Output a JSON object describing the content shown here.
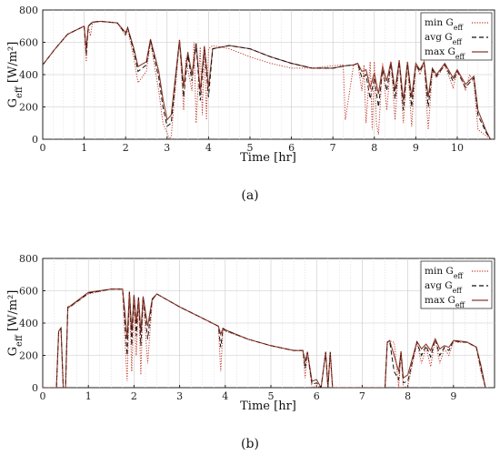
{
  "chart_data": [
    {
      "type": "line",
      "label": "(a)",
      "xlabel": "Time [hr]",
      "ylabel": "G_eff [W/m²]",
      "xlim": [
        0,
        10.9
      ],
      "ylim": [
        0,
        800
      ],
      "xticks": [
        0,
        1,
        2,
        3,
        4,
        5,
        6,
        7,
        8,
        9,
        10
      ],
      "yticks": [
        0,
        200,
        400,
        600,
        800
      ],
      "grid": true,
      "legend_position": "top-right",
      "legend": [
        "min G_eff",
        "avg G_eff",
        "max G_eff"
      ],
      "series": [
        {
          "name": "min G_eff",
          "color": "#c0392b",
          "style": "dotted",
          "x": [
            0,
            0.3,
            0.6,
            1.0,
            1.05,
            1.1,
            1.15,
            1.2,
            1.4,
            1.8,
            2.0,
            2.05,
            2.2,
            2.3,
            2.5,
            2.6,
            2.8,
            2.9,
            3.0,
            3.05,
            3.1,
            3.3,
            3.4,
            3.45,
            3.6,
            3.65,
            3.7,
            3.8,
            3.85,
            3.9,
            3.95,
            4.0,
            4.1,
            4.5,
            5.0,
            5.5,
            6.0,
            6.5,
            7.0,
            7.25,
            7.3,
            7.5,
            7.6,
            7.7,
            7.75,
            7.8,
            7.9,
            7.95,
            8.0,
            8.05,
            8.1,
            8.2,
            8.3,
            8.4,
            8.5,
            8.6,
            8.7,
            8.8,
            8.9,
            9.0,
            9.1,
            9.2,
            9.3,
            9.4,
            9.5,
            9.7,
            9.9,
            10.0,
            10.1,
            10.2,
            10.3,
            10.4,
            10.5,
            10.7,
            10.8
          ],
          "y": [
            460,
            560,
            650,
            700,
            480,
            700,
            640,
            720,
            730,
            720,
            640,
            680,
            500,
            350,
            420,
            600,
            300,
            100,
            40,
            0,
            20,
            610,
            180,
            500,
            300,
            600,
            100,
            570,
            150,
            580,
            120,
            560,
            580,
            560,
            510,
            470,
            440,
            440,
            455,
            460,
            120,
            460,
            470,
            300,
            460,
            100,
            480,
            60,
            480,
            100,
            30,
            470,
            180,
            480,
            120,
            490,
            100,
            470,
            80,
            460,
            400,
            480,
            60,
            420,
            380,
            460,
            320,
            420,
            380,
            300,
            400,
            350,
            60,
            20,
            0
          ]
        },
        {
          "name": "avg G_eff",
          "color": "#111111",
          "style": "dashed",
          "x": [
            0,
            0.3,
            0.6,
            1.0,
            1.05,
            1.1,
            1.2,
            1.4,
            1.8,
            2.0,
            2.05,
            2.2,
            2.3,
            2.5,
            2.6,
            2.8,
            2.9,
            3.0,
            3.1,
            3.3,
            3.4,
            3.5,
            3.6,
            3.7,
            3.8,
            3.9,
            4.0,
            4.1,
            4.5,
            5.0,
            5.5,
            6.0,
            6.5,
            7.0,
            7.3,
            7.5,
            7.6,
            7.7,
            7.8,
            7.9,
            8.0,
            8.1,
            8.2,
            8.3,
            8.4,
            8.5,
            8.6,
            8.7,
            8.8,
            8.9,
            9.0,
            9.1,
            9.2,
            9.3,
            9.4,
            9.5,
            9.7,
            9.9,
            10.0,
            10.2,
            10.4,
            10.5,
            10.7,
            10.8
          ],
          "y": [
            460,
            560,
            650,
            700,
            520,
            700,
            725,
            730,
            720,
            650,
            690,
            540,
            420,
            460,
            610,
            380,
            200,
            80,
            100,
            610,
            260,
            520,
            360,
            590,
            240,
            570,
            260,
            560,
            580,
            560,
            510,
            470,
            440,
            440,
            455,
            460,
            470,
            380,
            400,
            250,
            380,
            200,
            430,
            300,
            470,
            250,
            480,
            180,
            470,
            200,
            460,
            420,
            470,
            200,
            430,
            390,
            460,
            360,
            420,
            320,
            380,
            150,
            40,
            0
          ]
        },
        {
          "name": "max G_eff",
          "color": "#8b3a2a",
          "style": "solid",
          "x": [
            0,
            0.3,
            0.6,
            1.0,
            1.05,
            1.1,
            1.2,
            1.4,
            1.8,
            2.0,
            2.05,
            2.2,
            2.3,
            2.5,
            2.6,
            2.8,
            2.9,
            3.0,
            3.1,
            3.3,
            3.4,
            3.5,
            3.6,
            3.7,
            3.8,
            3.9,
            4.0,
            4.1,
            4.5,
            5.0,
            5.5,
            6.0,
            6.5,
            7.0,
            7.3,
            7.5,
            7.6,
            7.7,
            7.8,
            7.9,
            8.0,
            8.1,
            8.2,
            8.3,
            8.4,
            8.5,
            8.6,
            8.7,
            8.8,
            8.9,
            9.0,
            9.1,
            9.2,
            9.3,
            9.4,
            9.5,
            9.7,
            9.9,
            10.0,
            10.2,
            10.4,
            10.5,
            10.7,
            10.8
          ],
          "y": [
            460,
            560,
            650,
            700,
            560,
            700,
            725,
            730,
            720,
            660,
            690,
            560,
            450,
            480,
            620,
            420,
            250,
            120,
            150,
            615,
            330,
            540,
            400,
            595,
            300,
            575,
            320,
            560,
            580,
            560,
            510,
            470,
            440,
            440,
            455,
            460,
            470,
            420,
            430,
            320,
            410,
            280,
            450,
            360,
            480,
            300,
            490,
            240,
            480,
            260,
            470,
            430,
            480,
            260,
            440,
            400,
            470,
            380,
            430,
            340,
            390,
            180,
            50,
            0
          ]
        }
      ]
    },
    {
      "type": "line",
      "label": "(b)",
      "xlabel": "Time [hr]",
      "ylabel": "G_eff [W/m²]",
      "xlim": [
        0,
        9.9
      ],
      "ylim": [
        0,
        800
      ],
      "xticks": [
        0,
        1,
        2,
        3,
        4,
        5,
        6,
        7,
        8,
        9
      ],
      "yticks": [
        0,
        200,
        400,
        600,
        800
      ],
      "grid": true,
      "legend_position": "top-right",
      "legend": [
        "min G_eff",
        "avg G_eff",
        "max G_eff"
      ],
      "series": [
        {
          "name": "min G_eff",
          "color": "#c0392b",
          "style": "dotted",
          "x": [
            0.0,
            0.3,
            0.35,
            0.4,
            0.45,
            0.5,
            0.55,
            0.6,
            1.0,
            1.5,
            1.75,
            1.8,
            1.85,
            1.9,
            1.95,
            2.0,
            2.05,
            2.1,
            2.15,
            2.2,
            2.3,
            2.4,
            2.5,
            3.0,
            3.5,
            3.85,
            3.9,
            3.95,
            4.0,
            4.5,
            5.0,
            5.5,
            5.7,
            5.75,
            5.8,
            5.9,
            6.0,
            6.1,
            6.2,
            6.25,
            6.3,
            6.35,
            6.5,
            7.0,
            7.5,
            7.55,
            7.6,
            7.7,
            7.8,
            7.85,
            7.9,
            8.0,
            8.2,
            8.3,
            8.4,
            8.5,
            8.6,
            8.7,
            8.8,
            8.9,
            9.0,
            9.1,
            9.3,
            9.5,
            9.6,
            9.7
          ],
          "y": [
            0,
            0,
            350,
            360,
            0,
            0,
            490,
            500,
            580,
            610,
            610,
            300,
            40,
            580,
            100,
            560,
            200,
            540,
            80,
            560,
            150,
            540,
            580,
            500,
            430,
            380,
            100,
            360,
            350,
            300,
            260,
            230,
            230,
            60,
            220,
            0,
            10,
            0,
            220,
            0,
            220,
            0,
            0,
            0,
            0,
            280,
            290,
            280,
            0,
            220,
            0,
            10,
            280,
            150,
            250,
            130,
            300,
            150,
            240,
            200,
            290,
            280,
            280,
            250,
            100,
            0
          ]
        },
        {
          "name": "avg G_eff",
          "color": "#111111",
          "style": "dashed",
          "x": [
            0.0,
            0.3,
            0.35,
            0.4,
            0.45,
            0.5,
            0.55,
            0.6,
            1.0,
            1.5,
            1.75,
            1.8,
            1.85,
            1.9,
            1.95,
            2.0,
            2.05,
            2.1,
            2.15,
            2.2,
            2.3,
            2.4,
            2.5,
            3.0,
            3.5,
            3.85,
            3.9,
            3.95,
            4.0,
            4.5,
            5.0,
            5.5,
            5.7,
            5.75,
            5.8,
            5.9,
            6.0,
            6.1,
            6.2,
            6.25,
            6.3,
            6.35,
            6.5,
            7.0,
            7.5,
            7.55,
            7.6,
            7.7,
            7.8,
            7.85,
            7.9,
            8.0,
            8.2,
            8.3,
            8.4,
            8.5,
            8.6,
            8.7,
            8.8,
            8.9,
            9.0,
            9.1,
            9.3,
            9.5,
            9.6,
            9.7
          ],
          "y": [
            0,
            0,
            350,
            365,
            0,
            0,
            495,
            500,
            585,
            610,
            610,
            400,
            200,
            590,
            260,
            570,
            320,
            555,
            260,
            560,
            300,
            545,
            580,
            500,
            430,
            380,
            250,
            365,
            355,
            300,
            260,
            230,
            230,
            120,
            220,
            20,
            30,
            0,
            220,
            0,
            220,
            0,
            0,
            0,
            0,
            280,
            290,
            100,
            50,
            220,
            30,
            40,
            280,
            200,
            260,
            190,
            300,
            200,
            250,
            230,
            290,
            285,
            280,
            250,
            120,
            0
          ]
        },
        {
          "name": "max G_eff",
          "color": "#8b3a2a",
          "style": "solid",
          "x": [
            0.0,
            0.3,
            0.35,
            0.4,
            0.45,
            0.5,
            0.55,
            0.6,
            1.0,
            1.5,
            1.75,
            1.8,
            1.85,
            1.9,
            1.95,
            2.0,
            2.05,
            2.1,
            2.15,
            2.2,
            2.3,
            2.4,
            2.5,
            3.0,
            3.5,
            3.85,
            3.9,
            3.95,
            4.0,
            4.5,
            5.0,
            5.5,
            5.7,
            5.75,
            5.8,
            5.9,
            6.0,
            6.1,
            6.2,
            6.25,
            6.3,
            6.35,
            6.5,
            7.0,
            7.5,
            7.55,
            7.6,
            7.7,
            7.8,
            7.85,
            7.9,
            8.0,
            8.2,
            8.3,
            8.4,
            8.5,
            8.6,
            8.7,
            8.8,
            8.9,
            9.0,
            9.1,
            9.3,
            9.5,
            9.6,
            9.7
          ],
          "y": [
            0,
            0,
            350,
            370,
            0,
            0,
            500,
            505,
            590,
            610,
            610,
            470,
            300,
            595,
            350,
            575,
            400,
            560,
            340,
            565,
            380,
            550,
            580,
            500,
            430,
            380,
            330,
            368,
            358,
            300,
            260,
            230,
            230,
            160,
            222,
            40,
            50,
            0,
            222,
            0,
            222,
            0,
            0,
            0,
            0,
            282,
            292,
            200,
            100,
            225,
            60,
            80,
            285,
            240,
            270,
            230,
            302,
            240,
            260,
            250,
            292,
            290,
            282,
            252,
            140,
            0
          ]
        }
      ]
    }
  ]
}
